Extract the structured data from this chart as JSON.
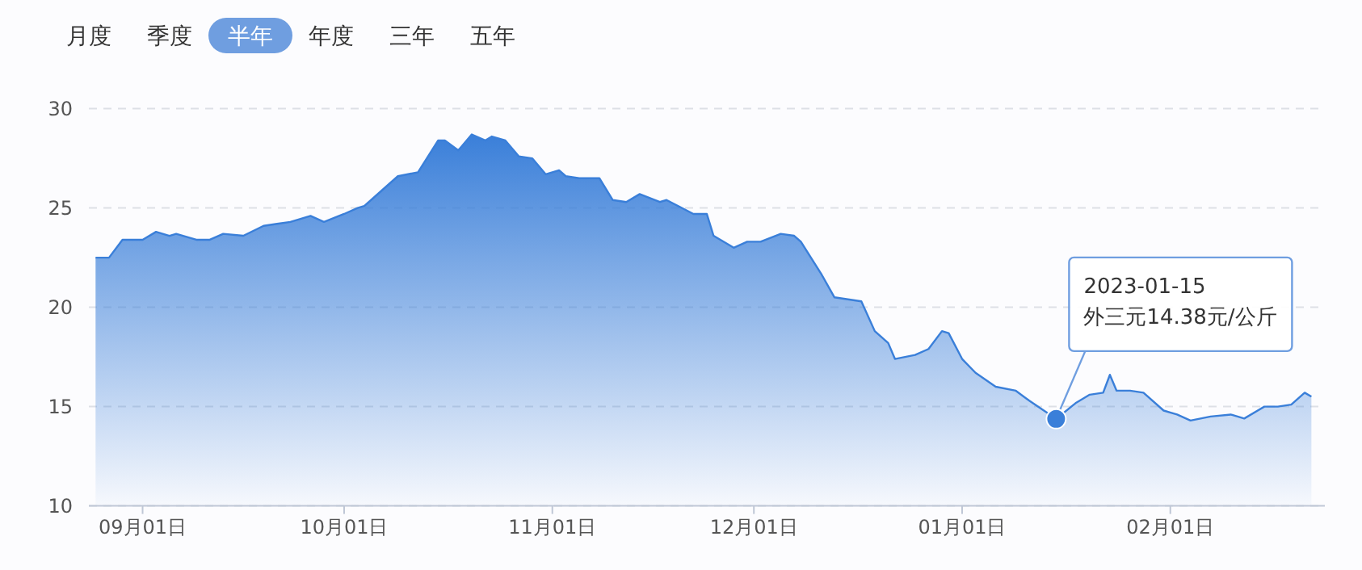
{
  "chart_data": {
    "type": "area",
    "x": [
      "2022-08-25",
      "2022-08-27",
      "2022-08-29",
      "2022-09-01",
      "2022-09-03",
      "2022-09-05",
      "2022-09-06",
      "2022-09-09",
      "2022-09-11",
      "2022-09-13",
      "2022-09-16",
      "2022-09-19",
      "2022-09-21",
      "2022-09-23",
      "2022-09-26",
      "2022-09-28",
      "2022-10-01",
      "2022-10-03",
      "2022-10-04",
      "2022-10-07",
      "2022-10-09",
      "2022-10-12",
      "2022-10-15",
      "2022-10-16",
      "2022-10-18",
      "2022-10-20",
      "2022-10-22",
      "2022-10-23",
      "2022-10-25",
      "2022-10-27",
      "2022-10-29",
      "2022-10-31",
      "2022-11-02",
      "2022-11-03",
      "2022-11-05",
      "2022-11-08",
      "2022-11-10",
      "2022-11-12",
      "2022-11-14",
      "2022-11-17",
      "2022-11-18",
      "2022-11-22",
      "2022-11-24",
      "2022-11-25",
      "2022-11-28",
      "2022-11-30",
      "2022-12-02",
      "2022-12-05",
      "2022-12-07",
      "2022-12-08",
      "2022-12-11",
      "2022-12-13",
      "2022-12-17",
      "2022-12-19",
      "2022-12-21",
      "2022-12-22",
      "2022-12-25",
      "2022-12-27",
      "2022-12-29",
      "2022-12-30",
      "2023-01-01",
      "2023-01-03",
      "2023-01-06",
      "2023-01-09",
      "2023-01-11",
      "2023-01-15",
      "2023-01-18",
      "2023-01-20",
      "2023-01-22",
      "2023-01-23",
      "2023-01-24",
      "2023-01-26",
      "2023-01-28",
      "2023-01-31",
      "2023-02-02",
      "2023-02-04",
      "2023-02-07",
      "2023-02-10",
      "2023-02-12",
      "2023-02-15",
      "2023-02-17",
      "2023-02-19",
      "2023-02-21",
      "2023-02-22"
    ],
    "series": [
      {
        "color": "#3a7fd9",
        "values": [
          22.5,
          22.5,
          23.4,
          23.4,
          23.8,
          23.6,
          23.7,
          23.4,
          23.4,
          23.7,
          23.6,
          24.1,
          24.2,
          24.3,
          24.6,
          24.3,
          24.7,
          25.0,
          25.1,
          26.0,
          26.6,
          26.8,
          28.4,
          28.4,
          27.9,
          28.7,
          28.4,
          28.6,
          28.4,
          27.6,
          27.5,
          26.7,
          26.9,
          26.6,
          26.5,
          26.5,
          25.4,
          25.3,
          25.7,
          25.3,
          25.4,
          24.7,
          24.7,
          23.6,
          23.0,
          23.3,
          23.3,
          23.7,
          23.6,
          23.3,
          21.7,
          20.5,
          20.3,
          18.8,
          18.2,
          17.4,
          17.6,
          17.9,
          18.8,
          18.7,
          17.4,
          16.7,
          16.0,
          15.8,
          15.3,
          14.38,
          15.2,
          15.6,
          15.7,
          16.6,
          15.8,
          15.8,
          15.7,
          14.8,
          14.6,
          14.3,
          14.5,
          14.6,
          14.4,
          15.0,
          15.0,
          15.1,
          15.7,
          15.5
        ]
      }
    ],
    "xlim": [
      "2022-08-24",
      "2023-02-24"
    ],
    "xticks": [
      {
        "value": "2022-09-01",
        "label": "09月01日"
      },
      {
        "value": "2022-10-01",
        "label": "10月01日"
      },
      {
        "value": "2022-11-01",
        "label": "11月01日"
      },
      {
        "value": "2022-12-01",
        "label": "12月01日"
      },
      {
        "value": "2023-01-01",
        "label": "01月01日"
      },
      {
        "value": "2023-02-01",
        "label": "02月01日"
      }
    ],
    "ylim": [
      10,
      30
    ],
    "yticks": [
      10,
      15,
      20,
      25,
      30
    ],
    "grid": "y",
    "annotations": [
      "月度",
      "季度",
      "半年",
      "年度",
      "三年",
      "五年",
      {
        "text": "2023-01-15\n外三元14.38元/公斤",
        "x": "2023-01-15",
        "y": 14.38
      }
    ]
  }
}
